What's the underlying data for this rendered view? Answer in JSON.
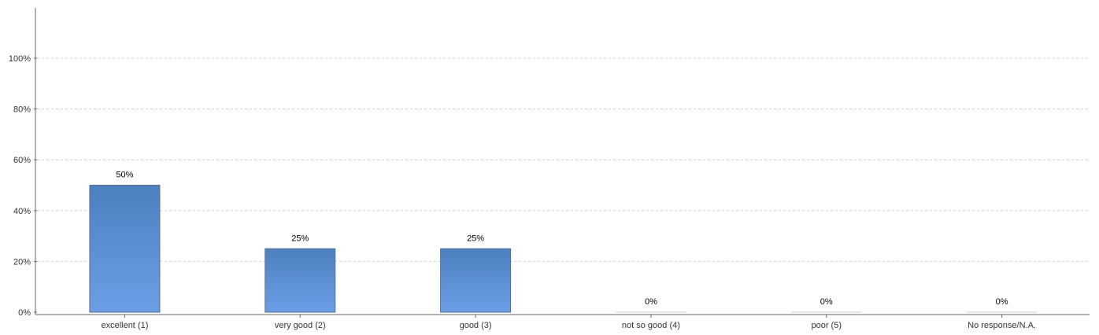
{
  "chart_data": {
    "type": "bar",
    "categories": [
      "excellent (1)",
      "very good (2)",
      "good (3)",
      "not so good (4)",
      "poor (5)",
      "No response/N.A."
    ],
    "values": [
      50,
      25,
      25,
      0,
      0,
      0
    ],
    "data_labels": [
      "50%",
      "25%",
      "25%",
      "0%",
      "0%",
      "0%"
    ],
    "y_ticks": [
      0,
      20,
      40,
      60,
      80,
      100
    ],
    "y_tick_labels": [
      "0%",
      "20%",
      "40%",
      "60%",
      "80%",
      "100%"
    ],
    "ylim": [
      0,
      100
    ],
    "grid": true,
    "legend": "none",
    "colors": {
      "bar_top": "#4d80bf",
      "bar_bottom": "#6c9ee6",
      "bar_stroke": "#5a6f8c",
      "grid": "#d0d0d0",
      "axis": "#666666"
    }
  }
}
